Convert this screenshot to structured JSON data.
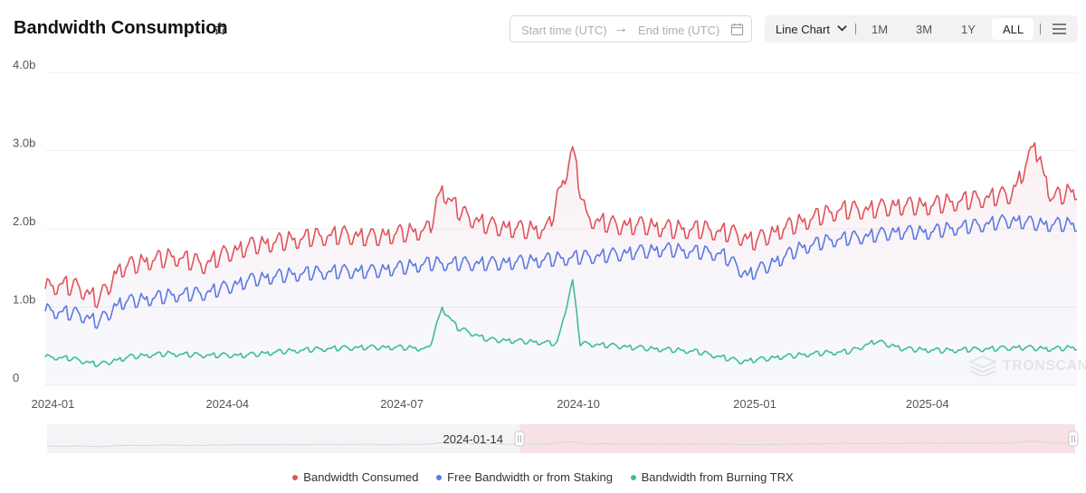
{
  "header": {
    "title": "Bandwidth Consumption",
    "start_placeholder": "Start time (UTC)",
    "end_placeholder": "End time (UTC)",
    "chart_type": "Line Chart",
    "ranges": [
      "1M",
      "3M",
      "1Y",
      "ALL"
    ],
    "selected_range": "ALL"
  },
  "watermark": "TRONSCAN",
  "slider": {
    "handle_label": "2024-01-14"
  },
  "colors": {
    "consumed": "#e0535a",
    "free": "#5b79e3",
    "burn": "#3dbf8f",
    "grid": "#eef0f2",
    "axis": "#555"
  },
  "chart_data": {
    "type": "line",
    "title": "Bandwidth Consumption",
    "x_range": [
      "2023-12-28",
      "2025-06-18"
    ],
    "x_ticks": [
      "2024-01",
      "2024-04",
      "2024-07",
      "2024-10",
      "2025-01",
      "2025-04"
    ],
    "ylim": [
      0,
      4.0
    ],
    "y_ticks": [
      "0",
      "1.0b",
      "2.0b",
      "3.0b",
      "4.0b"
    ],
    "grid": true,
    "legend_position": "bottom",
    "series": [
      {
        "name": "Bandwidth Consumed",
        "color": "#e0535a",
        "points": [
          [
            "2023-12-28",
            1.3
          ],
          [
            "2024-01-05",
            1.35
          ],
          [
            "2024-01-15",
            1.3
          ],
          [
            "2024-01-25",
            1.15
          ],
          [
            "2024-02-05",
            1.55
          ],
          [
            "2024-02-20",
            1.65
          ],
          [
            "2024-03-05",
            1.7
          ],
          [
            "2024-03-20",
            1.6
          ],
          [
            "2024-04-01",
            1.75
          ],
          [
            "2024-04-15",
            1.85
          ],
          [
            "2024-05-01",
            1.9
          ],
          [
            "2024-05-15",
            1.95
          ],
          [
            "2024-06-01",
            1.98
          ],
          [
            "2024-06-15",
            1.95
          ],
          [
            "2024-07-01",
            2.0
          ],
          [
            "2024-07-15",
            2.05
          ],
          [
            "2024-07-22",
            2.55
          ],
          [
            "2024-08-01",
            2.25
          ],
          [
            "2024-08-15",
            2.1
          ],
          [
            "2024-09-01",
            2.05
          ],
          [
            "2024-09-15",
            2.05
          ],
          [
            "2024-09-28",
            3.05
          ],
          [
            "2024-10-05",
            2.2
          ],
          [
            "2024-10-20",
            2.1
          ],
          [
            "2024-11-05",
            2.1
          ],
          [
            "2024-11-20",
            2.05
          ],
          [
            "2024-12-05",
            2.05
          ],
          [
            "2024-12-20",
            2.0
          ],
          [
            "2025-01-01",
            1.9
          ],
          [
            "2025-01-15",
            2.05
          ],
          [
            "2025-02-01",
            2.2
          ],
          [
            "2025-02-15",
            2.3
          ],
          [
            "2025-03-01",
            2.3
          ],
          [
            "2025-03-15",
            2.35
          ],
          [
            "2025-04-01",
            2.35
          ],
          [
            "2025-04-15",
            2.4
          ],
          [
            "2025-05-01",
            2.45
          ],
          [
            "2025-05-15",
            2.5
          ],
          [
            "2025-05-27",
            3.1
          ],
          [
            "2025-06-05",
            2.45
          ],
          [
            "2025-06-18",
            2.55
          ]
        ]
      },
      {
        "name": "Free Bandwidth or from Staking",
        "color": "#5b79e3",
        "points": [
          [
            "2023-12-28",
            1.0
          ],
          [
            "2024-01-05",
            0.98
          ],
          [
            "2024-01-15",
            0.95
          ],
          [
            "2024-01-25",
            0.85
          ],
          [
            "2024-02-05",
            1.1
          ],
          [
            "2024-02-20",
            1.15
          ],
          [
            "2024-03-05",
            1.2
          ],
          [
            "2024-03-20",
            1.22
          ],
          [
            "2024-04-01",
            1.3
          ],
          [
            "2024-04-15",
            1.4
          ],
          [
            "2024-05-01",
            1.45
          ],
          [
            "2024-05-15",
            1.48
          ],
          [
            "2024-06-01",
            1.5
          ],
          [
            "2024-06-15",
            1.5
          ],
          [
            "2024-07-01",
            1.55
          ],
          [
            "2024-07-15",
            1.6
          ],
          [
            "2024-08-01",
            1.6
          ],
          [
            "2024-08-15",
            1.6
          ],
          [
            "2024-09-01",
            1.62
          ],
          [
            "2024-09-15",
            1.65
          ],
          [
            "2024-10-01",
            1.68
          ],
          [
            "2024-10-15",
            1.7
          ],
          [
            "2024-11-01",
            1.75
          ],
          [
            "2024-11-15",
            1.78
          ],
          [
            "2024-12-01",
            1.75
          ],
          [
            "2024-12-15",
            1.72
          ],
          [
            "2024-12-28",
            1.45
          ],
          [
            "2025-01-10",
            1.6
          ],
          [
            "2025-01-25",
            1.8
          ],
          [
            "2025-02-10",
            1.9
          ],
          [
            "2025-03-01",
            1.95
          ],
          [
            "2025-03-15",
            2.0
          ],
          [
            "2025-04-01",
            2.0
          ],
          [
            "2025-04-15",
            2.05
          ],
          [
            "2025-05-01",
            2.1
          ],
          [
            "2025-05-15",
            2.15
          ],
          [
            "2025-06-01",
            2.1
          ],
          [
            "2025-06-18",
            2.1
          ]
        ]
      },
      {
        "name": "Bandwidth from Burning TRX",
        "color": "#3dbf8f",
        "points": [
          [
            "2023-12-28",
            0.38
          ],
          [
            "2024-01-10",
            0.36
          ],
          [
            "2024-01-25",
            0.28
          ],
          [
            "2024-02-10",
            0.38
          ],
          [
            "2024-03-01",
            0.42
          ],
          [
            "2024-03-20",
            0.4
          ],
          [
            "2024-04-10",
            0.4
          ],
          [
            "2024-05-01",
            0.45
          ],
          [
            "2024-05-20",
            0.48
          ],
          [
            "2024-06-10",
            0.5
          ],
          [
            "2024-07-01",
            0.5
          ],
          [
            "2024-07-15",
            0.48
          ],
          [
            "2024-07-22",
            1.0
          ],
          [
            "2024-07-30",
            0.75
          ],
          [
            "2024-08-15",
            0.6
          ],
          [
            "2024-09-01",
            0.58
          ],
          [
            "2024-09-20",
            0.55
          ],
          [
            "2024-09-28",
            1.35
          ],
          [
            "2024-10-02",
            0.55
          ],
          [
            "2024-10-20",
            0.52
          ],
          [
            "2024-11-10",
            0.48
          ],
          [
            "2024-12-01",
            0.45
          ],
          [
            "2024-12-25",
            0.32
          ],
          [
            "2025-01-15",
            0.38
          ],
          [
            "2025-02-01",
            0.42
          ],
          [
            "2025-02-20",
            0.45
          ],
          [
            "2025-03-05",
            0.58
          ],
          [
            "2025-03-20",
            0.48
          ],
          [
            "2025-04-10",
            0.46
          ],
          [
            "2025-05-01",
            0.48
          ],
          [
            "2025-05-20",
            0.5
          ],
          [
            "2025-06-05",
            0.48
          ],
          [
            "2025-06-18",
            0.5
          ]
        ]
      }
    ]
  }
}
